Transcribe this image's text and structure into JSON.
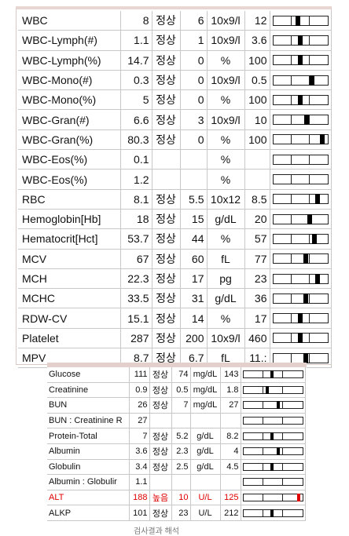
{
  "top_table": {
    "rows": [
      {
        "name": "WBC",
        "value": "8",
        "flag": "정상",
        "low": "6",
        "unit": "10x9/l",
        "high": "12",
        "marker": 0.45
      },
      {
        "name": "WBC-Lymph(#)",
        "value": "1.1",
        "flag": "정상",
        "low": "1",
        "unit": "10x9/l",
        "high": "3.6",
        "marker": 0.5
      },
      {
        "name": "WBC-Lymph(%)",
        "value": "14.7",
        "flag": "정상",
        "low": "0",
        "unit": "%",
        "high": "100",
        "marker": 0.5
      },
      {
        "name": "WBC-Mono(#)",
        "value": "0.3",
        "flag": "정상",
        "low": "0",
        "unit": "10x9/l",
        "high": "0.5",
        "marker": 0.72
      },
      {
        "name": "WBC-Mono(%)",
        "value": "5",
        "flag": "정상",
        "low": "0",
        "unit": "%",
        "high": "100",
        "marker": 0.5
      },
      {
        "name": "WBC-Gran(#)",
        "value": "6.6",
        "flag": "정상",
        "low": "3",
        "unit": "10x9/l",
        "high": "10",
        "marker": 0.62
      },
      {
        "name": "WBC-Gran(%)",
        "value": "80.3",
        "flag": "정상",
        "low": "0",
        "unit": "%",
        "high": "100",
        "marker": 0.9
      },
      {
        "name": "WBC-Eos(%)",
        "value": "0.1",
        "flag": "",
        "low": "",
        "unit": "%",
        "high": "",
        "marker": null
      },
      {
        "name": "WBC-Eos(%)",
        "value": "1.2",
        "flag": "",
        "low": "",
        "unit": "%",
        "high": "",
        "marker": null
      },
      {
        "name": "RBC",
        "value": "8.1",
        "flag": "정상",
        "low": "5.5",
        "unit": "10x12",
        "high": "8.5",
        "marker": 0.82
      },
      {
        "name": "Hemoglobin[Hb]",
        "value": "18",
        "flag": "정상",
        "low": "15",
        "unit": "g/dL",
        "high": "20",
        "marker": 0.68
      },
      {
        "name": "Hematocrit[Hct]",
        "value": "53.7",
        "flag": "정상",
        "low": "44",
        "unit": "%",
        "high": "57",
        "marker": 0.76
      },
      {
        "name": "MCV",
        "value": "67",
        "flag": "정상",
        "low": "60",
        "unit": "fL",
        "high": "77",
        "marker": 0.6
      },
      {
        "name": "MCH",
        "value": "22.3",
        "flag": "정상",
        "low": "17",
        "unit": "pg",
        "high": "23",
        "marker": 0.82
      },
      {
        "name": "MCHC",
        "value": "33.5",
        "flag": "정상",
        "low": "31",
        "unit": "g/dL",
        "high": "36",
        "marker": 0.6
      },
      {
        "name": "RDW-CV",
        "value": "15.1",
        "flag": "정상",
        "low": "14",
        "unit": "%",
        "high": "17",
        "marker": 0.5
      },
      {
        "name": "Platelet",
        "value": "287",
        "flag": "정상",
        "low": "200",
        "unit": "10x9/l",
        "high": "460",
        "marker": 0.5
      },
      {
        "name": "MPV",
        "value": "8.7",
        "flag": "정상",
        "low": "6.7",
        "unit": "fL",
        "high": "11.:",
        "marker": 0.6
      }
    ]
  },
  "bottom_table": {
    "rows": [
      {
        "name": "Glucose",
        "value": "111",
        "flag": "정상",
        "low": "74",
        "unit": "mg/dL",
        "high": "143",
        "marker": 0.5,
        "abnormal": false
      },
      {
        "name": "Creatinine",
        "value": "0.9",
        "flag": "정상",
        "low": "0.5",
        "unit": "mg/dL",
        "high": "1.8",
        "marker": 0.42,
        "abnormal": false
      },
      {
        "name": "BUN",
        "value": "26",
        "flag": "정상",
        "low": "7",
        "unit": "mg/dL",
        "high": "27",
        "marker": 0.6,
        "abnormal": false
      },
      {
        "name": "BUN : Creatinine R",
        "value": "27",
        "flag": "",
        "low": "",
        "unit": "",
        "high": "",
        "marker": null,
        "abnormal": false
      },
      {
        "name": "Protein-Total",
        "value": "7",
        "flag": "정상",
        "low": "5.2",
        "unit": "g/dL",
        "high": "8.2",
        "marker": 0.5,
        "abnormal": false
      },
      {
        "name": "Albumin",
        "value": "3.6",
        "flag": "정상",
        "low": "2.3",
        "unit": "g/dL",
        "high": "4",
        "marker": 0.6,
        "abnormal": false
      },
      {
        "name": "Globulin",
        "value": "3.4",
        "flag": "정상",
        "low": "2.5",
        "unit": "g/dL",
        "high": "4.5",
        "marker": 0.5,
        "abnormal": false
      },
      {
        "name": "Albumin : Globulir",
        "value": "1.1",
        "flag": "",
        "low": "",
        "unit": "",
        "high": "",
        "marker": null,
        "abnormal": false
      },
      {
        "name": "ALT",
        "value": "188",
        "flag": "높음",
        "low": "10",
        "unit": "U/L",
        "high": "125",
        "marker": 0.95,
        "abnormal": true
      },
      {
        "name": "ALKP",
        "value": "101",
        "flag": "정상",
        "low": "23",
        "unit": "U/L",
        "high": "212",
        "marker": 0.5,
        "abnormal": false
      }
    ]
  },
  "caption": "검사결과 해석"
}
